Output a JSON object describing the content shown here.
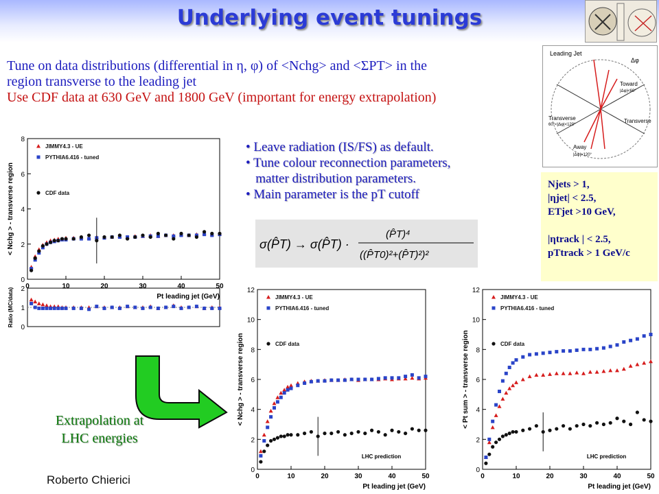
{
  "slide": {
    "title": "Underlying event tunings",
    "intro_line1": "Tune on data distributions (differential in η, φ) of <Nchg> and <ΣPT> in the",
    "intro_line2": "region transverse to the leading jet",
    "intro_line3": "Use CDF data at 630 GeV and 1800 GeV (important for energy extrapolation)",
    "bullets": [
      "• Leave radiation (IS/FS) as default.",
      "• Tune colour reconnection parameters,",
      "   matter distribution parameters.",
      "• Main parameter is the pT cutoff"
    ],
    "cuts": [
      "Njets > 1,",
      "|ηjet| < 2.5,",
      "ETjet >10 GeV,",
      "",
      "|ηtrack | < 2.5,",
      "pTtrack > 1 GeV/c"
    ],
    "extrapolation": [
      "Extrapolation at",
      "LHC energies"
    ],
    "author": "Roberto Chierici",
    "colors": {
      "title": "#2b3bd6",
      "text": "#1c1cbe",
      "highlight": "#c41212",
      "arrow": "#22cc22",
      "jimmy": "#d61c1c",
      "pythia": "#2a44c8",
      "cdf": "#111111"
    }
  },
  "diagram": {
    "labels": [
      "Leading Jet",
      "Δφ",
      "Toward",
      "|Δφ|<60°",
      "Transverse",
      "60°<|Δφ|<120°",
      "Transverse",
      "Away",
      "|Δφ|>120°"
    ]
  },
  "chart_data": [
    {
      "type": "scatter",
      "xlabel": "Pt leading jet (GeV)",
      "ylabel": "< Nchg > - transverse region",
      "xlim": [
        0,
        50
      ],
      "ylim": [
        0,
        8
      ],
      "xticks": [
        0,
        10,
        20,
        30,
        40,
        50
      ],
      "yticks": [
        0,
        2,
        4,
        6,
        8
      ],
      "legend": [
        "JIMMY4.3 - UE",
        "PYTHIA6.416 - tuned",
        "CDF data"
      ],
      "x": [
        1,
        2,
        3,
        4,
        5,
        6,
        7,
        8,
        9,
        10,
        12,
        14,
        16,
        18,
        20,
        22,
        24,
        26,
        28,
        30,
        32,
        34,
        36,
        38,
        40,
        42,
        44,
        46,
        48,
        50
      ],
      "series": [
        {
          "name": "JIMMY4.3 - UE",
          "values": [
            0.7,
            1.3,
            1.7,
            1.95,
            2.1,
            2.2,
            2.25,
            2.3,
            2.3,
            2.35,
            2.35,
            2.4,
            2.35,
            2.4,
            2.4,
            2.4,
            2.45,
            2.4,
            2.45,
            2.45,
            2.5,
            2.45,
            2.5,
            2.5,
            2.55,
            2.5,
            2.55,
            2.6,
            2.55,
            2.6
          ]
        },
        {
          "name": "PYTHIA6.416 - tuned",
          "values": [
            0.6,
            1.1,
            1.5,
            1.8,
            2.0,
            2.1,
            2.15,
            2.2,
            2.25,
            2.25,
            2.3,
            2.3,
            2.3,
            2.35,
            2.35,
            2.4,
            2.4,
            2.4,
            2.4,
            2.45,
            2.45,
            2.45,
            2.5,
            2.45,
            2.5,
            2.5,
            2.5,
            2.55,
            2.5,
            2.55
          ]
        },
        {
          "name": "CDF data",
          "values": [
            0.5,
            1.2,
            1.6,
            1.9,
            2.0,
            2.1,
            2.2,
            2.2,
            2.3,
            2.3,
            2.3,
            2.4,
            2.5,
            2.2,
            2.4,
            2.4,
            2.5,
            2.3,
            2.4,
            2.5,
            2.4,
            2.6,
            2.5,
            2.3,
            2.6,
            2.5,
            2.4,
            2.7,
            2.6,
            2.6
          ]
        }
      ],
      "ratio": {
        "ylabel": "Ratio (MC/data)",
        "ylim": [
          0,
          2
        ],
        "yticks": [
          0,
          1,
          2
        ],
        "jimmy": [
          1.4,
          1.3,
          1.2,
          1.15,
          1.1,
          1.05,
          1.05,
          1.05,
          1.0,
          1.0,
          1.0,
          1.0,
          1.0,
          1.05,
          1.0,
          1.0,
          1.0,
          1.05,
          1.0,
          1.0,
          1.05,
          0.95,
          1.0,
          1.1,
          1.0,
          1.0,
          1.05,
          0.95,
          1.0,
          1.0
        ],
        "pythia": [
          1.2,
          1.0,
          0.95,
          0.95,
          0.95,
          0.95,
          0.95,
          0.95,
          0.95,
          0.95,
          0.95,
          0.95,
          0.9,
          1.05,
          0.95,
          1.0,
          0.95,
          1.05,
          1.0,
          0.95,
          1.0,
          0.95,
          1.0,
          1.05,
          0.95,
          1.0,
          1.05,
          0.95,
          0.95,
          0.95
        ]
      }
    },
    {
      "type": "scatter",
      "xlabel": "Pt leading jet (GeV)",
      "ylabel": "< Nchg > - transverse region",
      "xlim": [
        0,
        50
      ],
      "ylim": [
        0,
        12
      ],
      "xticks": [
        0,
        10,
        20,
        30,
        40,
        50
      ],
      "yticks": [
        0,
        2,
        4,
        6,
        8,
        10,
        12
      ],
      "legend": [
        "JIMMY4.3 - UE",
        "PYTHIA6.416 - tuned",
        "CDF data"
      ],
      "annotation": "LHC prediction",
      "x": [
        1,
        2,
        3,
        4,
        5,
        6,
        7,
        8,
        9,
        10,
        12,
        14,
        16,
        18,
        20,
        22,
        24,
        26,
        28,
        30,
        32,
        34,
        36,
        38,
        40,
        42,
        44,
        46,
        48,
        50
      ],
      "series": [
        {
          "name": "JIMMY4.3 - UE",
          "values": [
            1.2,
            2.3,
            3.2,
            3.9,
            4.4,
            4.8,
            5.1,
            5.3,
            5.5,
            5.6,
            5.75,
            5.85,
            5.9,
            5.9,
            5.95,
            5.95,
            5.95,
            6.0,
            6.0,
            5.95,
            6.0,
            6.0,
            6.0,
            6.05,
            6.0,
            6.05,
            6.05,
            6.1,
            6.05,
            6.1
          ]
        },
        {
          "name": "PYTHIA6.416 - tuned",
          "values": [
            0.9,
            1.9,
            2.8,
            3.5,
            4.1,
            4.5,
            4.8,
            5.1,
            5.3,
            5.4,
            5.6,
            5.75,
            5.85,
            5.9,
            5.9,
            5.95,
            5.95,
            5.95,
            6.0,
            6.0,
            6.0,
            6.0,
            6.05,
            6.1,
            6.1,
            6.1,
            6.2,
            6.3,
            6.1,
            6.2
          ]
        },
        {
          "name": "CDF data",
          "values": [
            0.5,
            1.2,
            1.6,
            1.9,
            2.0,
            2.1,
            2.2,
            2.2,
            2.3,
            2.3,
            2.3,
            2.4,
            2.5,
            2.2,
            2.4,
            2.4,
            2.5,
            2.3,
            2.4,
            2.5,
            2.4,
            2.6,
            2.5,
            2.3,
            2.6,
            2.5,
            2.4,
            2.7,
            2.6,
            2.6
          ]
        }
      ]
    },
    {
      "type": "scatter",
      "xlabel": "Pt leading jet (GeV)",
      "ylabel": "< Pt sum > - transverse region",
      "xlim": [
        0,
        50
      ],
      "ylim": [
        0,
        12
      ],
      "xticks": [
        0,
        10,
        20,
        30,
        40,
        50
      ],
      "yticks": [
        0,
        2,
        4,
        6,
        8,
        10,
        12
      ],
      "legend": [
        "JIMMY4.3 - UE",
        "PYTHIA6.416 - tuned",
        "CDF data"
      ],
      "annotation": "LHC prediction",
      "x": [
        1,
        2,
        3,
        4,
        5,
        6,
        7,
        8,
        9,
        10,
        12,
        14,
        16,
        18,
        20,
        22,
        24,
        26,
        28,
        30,
        32,
        34,
        36,
        38,
        40,
        42,
        44,
        46,
        48,
        50
      ],
      "series": [
        {
          "name": "JIMMY4.3 - UE",
          "values": [
            0.8,
            1.8,
            2.8,
            3.6,
            4.2,
            4.7,
            5.1,
            5.4,
            5.6,
            5.8,
            6.0,
            6.2,
            6.3,
            6.3,
            6.35,
            6.4,
            6.4,
            6.4,
            6.45,
            6.4,
            6.5,
            6.5,
            6.55,
            6.6,
            6.6,
            6.7,
            6.9,
            7.0,
            7.1,
            7.2
          ]
        },
        {
          "name": "PYTHIA6.416 - tuned",
          "values": [
            0.8,
            2.0,
            3.2,
            4.3,
            5.2,
            5.9,
            6.4,
            6.8,
            7.1,
            7.3,
            7.5,
            7.65,
            7.7,
            7.75,
            7.8,
            7.85,
            7.9,
            7.9,
            7.95,
            8.0,
            8.0,
            8.05,
            8.1,
            8.2,
            8.3,
            8.5,
            8.6,
            8.7,
            8.9,
            9.0
          ]
        },
        {
          "name": "CDF data",
          "values": [
            0.4,
            1.0,
            1.5,
            1.8,
            2.0,
            2.2,
            2.3,
            2.4,
            2.5,
            2.5,
            2.6,
            2.7,
            2.9,
            2.5,
            2.6,
            2.7,
            2.9,
            2.7,
            2.9,
            3.0,
            2.9,
            3.1,
            3.0,
            3.1,
            3.4,
            3.2,
            3.0,
            3.8,
            3.3,
            3.2
          ]
        }
      ]
    }
  ]
}
